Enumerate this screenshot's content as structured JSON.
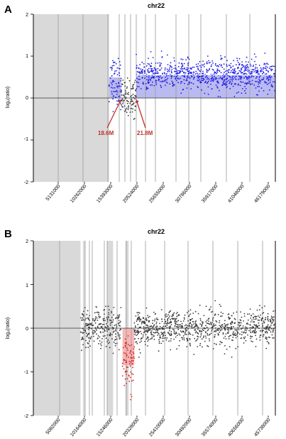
{
  "panels": [
    {
      "label": "A",
      "title": "chr22",
      "ylabel": "log₂(ratio)",
      "yticks": [
        "2",
        "1",
        "0",
        "-1",
        "-2"
      ],
      "xticks": [
        "5131000",
        "10262000",
        "15393000",
        "20524000",
        "25655000",
        "30786000",
        "35917000",
        "41048000",
        "46179000"
      ],
      "annotations": [
        "18.6M",
        "21.8M"
      ],
      "colors": {
        "points": "#1f1fe6",
        "fill": "#b3b3ee",
        "annotation": "#c0302b",
        "masked": "#d9d9d9"
      }
    },
    {
      "label": "B",
      "title": "chr22",
      "ylabel": "log₂(ratio)",
      "yticks": [
        "2",
        "1",
        "0",
        "-1",
        "-2"
      ],
      "xticks": [
        "5082000",
        "10164000",
        "15246000",
        "20328000",
        "25410000",
        "30492000",
        "35574000",
        "40656000",
        "45738000"
      ],
      "annotations": [],
      "colors": {
        "points": "#3a3a3a",
        "highlight_points": "#e01e1e",
        "highlight_fill": "#f4b0b0",
        "masked": "#d9d9d9"
      }
    }
  ],
  "chart_data": [
    {
      "type": "scatter",
      "panel": "A",
      "title": "chr22",
      "xlabel": "",
      "ylabel": "log₂(ratio)",
      "ylim": [
        -2,
        2
      ],
      "xlim": [
        0,
        51304566
      ],
      "grid": true,
      "masked_regions": [
        [
          0,
          16050000
        ]
      ],
      "series": [
        {
          "segment": "pericentromeric",
          "x_range": [
            16050000,
            18600000
          ],
          "mean": 0.4,
          "spread": 0.3,
          "color": "#1f1fe6"
        },
        {
          "segment": "deleted-region",
          "x_range": [
            18600000,
            21800000
          ],
          "mean": 0.0,
          "spread": 0.22,
          "color": "#3a3a3a"
        },
        {
          "segment": "gain",
          "x_range": [
            21800000,
            51304566
          ],
          "mean": 0.55,
          "spread": 0.18,
          "color": "#1f1fe6"
        }
      ],
      "filled_segments": [
        {
          "x_range": [
            16050000,
            18600000
          ],
          "value": 0.5
        },
        {
          "x_range": [
            21800000,
            51304566
          ],
          "value": 0.55
        }
      ],
      "annotations": [
        {
          "text": "18.6M",
          "x": 18600000,
          "y": -0.75
        },
        {
          "text": "21.8M",
          "x": 21800000,
          "y": -0.75
        }
      ]
    },
    {
      "type": "scatter",
      "panel": "B",
      "title": "chr22",
      "xlabel": "",
      "ylabel": "log₂(ratio)",
      "ylim": [
        -2,
        2
      ],
      "xlim": [
        0,
        51304566
      ],
      "grid": true,
      "masked_regions": [
        [
          0,
          10000000
        ],
        [
          10500000,
          11000000
        ],
        [
          15600000,
          16900000
        ],
        [
          19500000,
          20200000
        ]
      ],
      "series": [
        {
          "segment": "baseline-left",
          "x_range": [
            10000000,
            18600000
          ],
          "mean": 0.0,
          "spread": 0.22,
          "color": "#3a3a3a"
        },
        {
          "segment": "deletion",
          "x_range": [
            18900000,
            21400000
          ],
          "mean": -0.85,
          "spread": 0.3,
          "color": "#e01e1e"
        },
        {
          "segment": "baseline-right",
          "x_range": [
            21400000,
            51304566
          ],
          "mean": 0.0,
          "spread": 0.2,
          "color": "#3a3a3a"
        }
      ],
      "filled_segments": [
        {
          "x_range": [
            18900000,
            21400000
          ],
          "value": -0.85
        }
      ]
    }
  ]
}
